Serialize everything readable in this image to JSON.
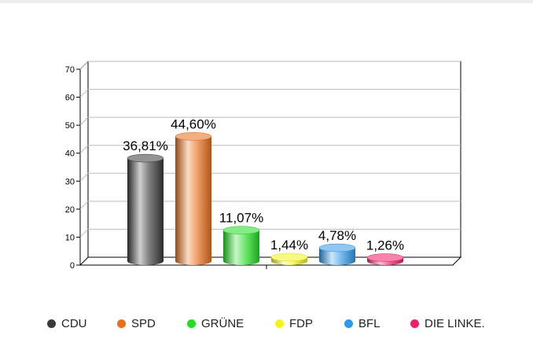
{
  "chart_data": {
    "type": "bar",
    "style": "3d-cylinder",
    "categories": [
      "CDU",
      "SPD",
      "GRÜNE",
      "FDP",
      "BFL",
      "DIE LINKE."
    ],
    "values": [
      36.81,
      44.6,
      11.07,
      1.44,
      4.78,
      1.26
    ],
    "value_labels": [
      "36,81%",
      "44,60%",
      "11,07%",
      "1,44%",
      "4,78%",
      "1,26%"
    ],
    "colors": [
      "#3a3a3a",
      "#e8701c",
      "#22dd22",
      "#f4f41c",
      "#2f9ae8",
      "#ee1f6a"
    ],
    "title": "",
    "xlabel": "",
    "ylabel": "",
    "ylim": [
      0,
      70
    ],
    "yticks": [
      0,
      10,
      20,
      30,
      40,
      50,
      60,
      70
    ],
    "grid": true,
    "legend": "bottom"
  }
}
